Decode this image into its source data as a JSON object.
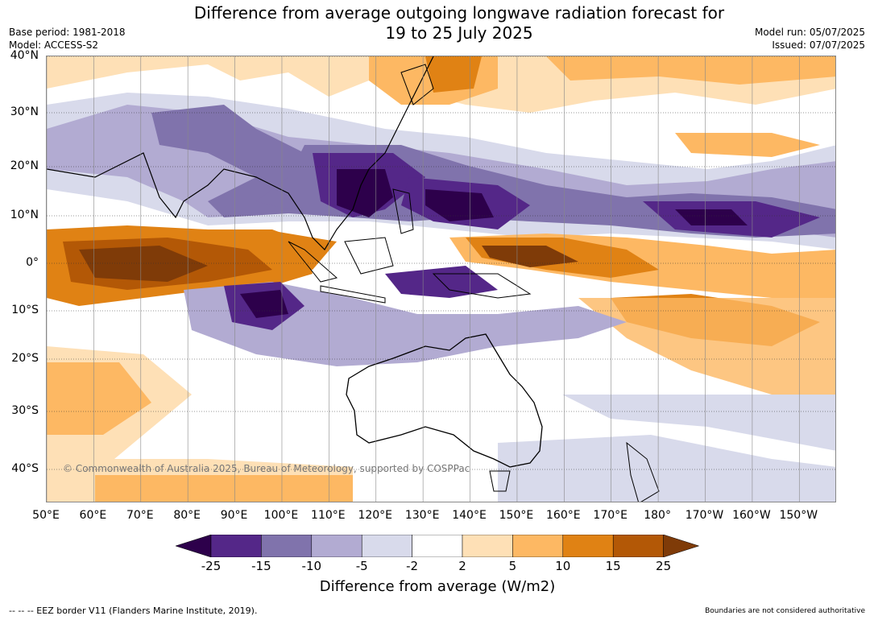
{
  "header": {
    "title_line1": "Difference from average outgoing longwave radiation forecast for",
    "title_line2": "19 to 25 July 2025",
    "base_period": "Base period: 1981-2018",
    "model": "Model: ACCESS-S2",
    "model_run": "Model run: 05/07/2025",
    "issued": "Issued: 07/07/2025"
  },
  "map": {
    "lat_labels": [
      "40°N",
      "30°N",
      "20°N",
      "10°N",
      "0°",
      "10°S",
      "20°S",
      "30°S",
      "40°S"
    ],
    "lon_labels": [
      "50°E",
      "60°E",
      "70°E",
      "80°E",
      "90°E",
      "100°E",
      "110°E",
      "120°E",
      "130°E",
      "140°E",
      "150°E",
      "160°E",
      "170°E",
      "180°",
      "170°W",
      "160°W",
      "150°W"
    ],
    "copyright": "© Commonwealth of Australia 2025, Bureau of Meteorology, supported by COSPPac",
    "anomaly_regions": [
      {
        "name": "Indian Ocean / Maritime Continent equatorial band",
        "level": "10 to 25",
        "color": "#b35806"
      },
      {
        "name": "Western Pacific equatorial band",
        "level": "10 to 25",
        "color": "#b35806"
      },
      {
        "name": "South China Sea / Philippine Sea",
        "level": "< -25",
        "color": "#2d004b"
      },
      {
        "name": "Central Pacific 10N band",
        "level": "< -25",
        "color": "#2d004b"
      },
      {
        "name": "Eastern Indian Ocean 10S",
        "level": "< -25",
        "color": "#2d004b"
      }
    ]
  },
  "colorbar": {
    "title": "Difference from average (W/m2)",
    "tick_labels": [
      "-25",
      "-15",
      "-10",
      "-5",
      "-2",
      "2",
      "5",
      "10",
      "15",
      "25"
    ],
    "colors": [
      "#2d004b",
      "#542788",
      "#8073ac",
      "#b2abd2",
      "#d8daeb",
      "#ffffff",
      "#fee0b6",
      "#fdb863",
      "#e08214",
      "#b35806",
      "#7f3b08"
    ]
  },
  "footer": {
    "eez": "-- -- -- EEZ border V11 (Flanders Marine Institute, 2019).",
    "disclaimer": "Boundaries are not considered authoritative"
  }
}
